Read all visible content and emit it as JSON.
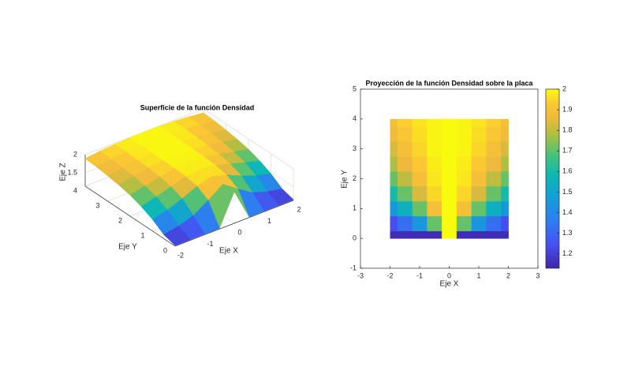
{
  "chart_data": [
    {
      "type": "surface",
      "title": "Superficie de la función Densidad",
      "xlabel": "Eje X",
      "ylabel": "Eje Y",
      "zlabel": "Eje Z",
      "colormap": "parula",
      "grid": true,
      "x": [
        -2,
        -1.5,
        -1,
        -0.5,
        0,
        0.5,
        1,
        1.5,
        2
      ],
      "y": [
        0,
        0.5,
        1,
        1.5,
        2,
        2.5,
        3,
        3.5,
        4
      ],
      "z": [
        [
          1.15,
          1.15,
          1.15,
          1.15,
          2,
          1.15,
          1.15,
          1.15,
          1.15
        ],
        [
          1.24,
          1.32,
          1.45,
          1.71,
          2,
          1.71,
          1.45,
          1.32,
          1.24
        ],
        [
          1.45,
          1.55,
          1.71,
          1.89,
          2,
          1.89,
          1.71,
          1.55,
          1.45
        ],
        [
          1.6,
          1.71,
          1.83,
          1.95,
          2,
          1.95,
          1.83,
          1.71,
          1.6
        ],
        [
          1.71,
          1.8,
          1.89,
          1.97,
          2,
          1.97,
          1.89,
          1.8,
          1.71
        ],
        [
          1.78,
          1.86,
          1.93,
          1.98,
          2,
          1.98,
          1.93,
          1.86,
          1.78
        ],
        [
          1.83,
          1.89,
          1.95,
          1.99,
          2,
          1.99,
          1.95,
          1.89,
          1.83
        ],
        [
          1.87,
          1.92,
          1.96,
          1.99,
          2,
          1.99,
          1.96,
          1.92,
          1.87
        ],
        [
          1.89,
          1.94,
          1.97,
          1.99,
          2,
          1.99,
          1.97,
          1.94,
          1.89
        ]
      ],
      "xlim": [
        -2,
        2
      ],
      "ylim": [
        0,
        4
      ],
      "zlim": [
        1.13,
        2
      ],
      "xticks": [
        -2,
        -1,
        0,
        1,
        2
      ],
      "yticks": [
        0,
        1,
        2,
        3,
        4
      ],
      "zticks": [
        1.5,
        2
      ]
    },
    {
      "type": "heatmap",
      "title": "Proyección de la función Densidad sobre la placa",
      "xlabel": "Eje X",
      "ylabel": "Eje Y",
      "colormap": "parula",
      "x": [
        -2,
        -1.5,
        -1,
        -0.5,
        0,
        0.5,
        1,
        1.5,
        2
      ],
      "y": [
        0,
        0.5,
        1,
        1.5,
        2,
        2.5,
        3,
        3.5,
        4
      ],
      "z": [
        [
          1.15,
          1.15,
          1.15,
          1.15,
          2,
          1.15,
          1.15,
          1.15,
          1.15
        ],
        [
          1.24,
          1.32,
          1.45,
          1.71,
          2,
          1.71,
          1.45,
          1.32,
          1.24
        ],
        [
          1.45,
          1.55,
          1.71,
          1.89,
          2,
          1.89,
          1.71,
          1.55,
          1.45
        ],
        [
          1.6,
          1.71,
          1.83,
          1.95,
          2,
          1.95,
          1.83,
          1.71,
          1.6
        ],
        [
          1.71,
          1.8,
          1.89,
          1.97,
          2,
          1.97,
          1.89,
          1.8,
          1.71
        ],
        [
          1.78,
          1.86,
          1.93,
          1.98,
          2,
          1.98,
          1.93,
          1.86,
          1.78
        ],
        [
          1.83,
          1.89,
          1.95,
          1.99,
          2,
          1.99,
          1.95,
          1.89,
          1.83
        ],
        [
          1.87,
          1.92,
          1.96,
          1.99,
          2,
          1.99,
          1.96,
          1.92,
          1.87
        ],
        [
          1.89,
          1.94,
          1.97,
          1.99,
          2,
          1.99,
          1.97,
          1.94,
          1.89
        ]
      ],
      "xlim": [
        -3,
        3
      ],
      "ylim": [
        -1,
        5
      ],
      "xticks": [
        -3,
        -2,
        -1,
        0,
        1,
        2,
        3
      ],
      "yticks": [
        -1,
        0,
        1,
        2,
        3,
        4,
        5
      ],
      "colorbar": {
        "lim": [
          1.13,
          2
        ],
        "ticks": [
          1.2,
          1.3,
          1.4,
          1.5,
          1.6,
          1.7,
          1.8,
          1.9,
          2
        ]
      }
    }
  ]
}
